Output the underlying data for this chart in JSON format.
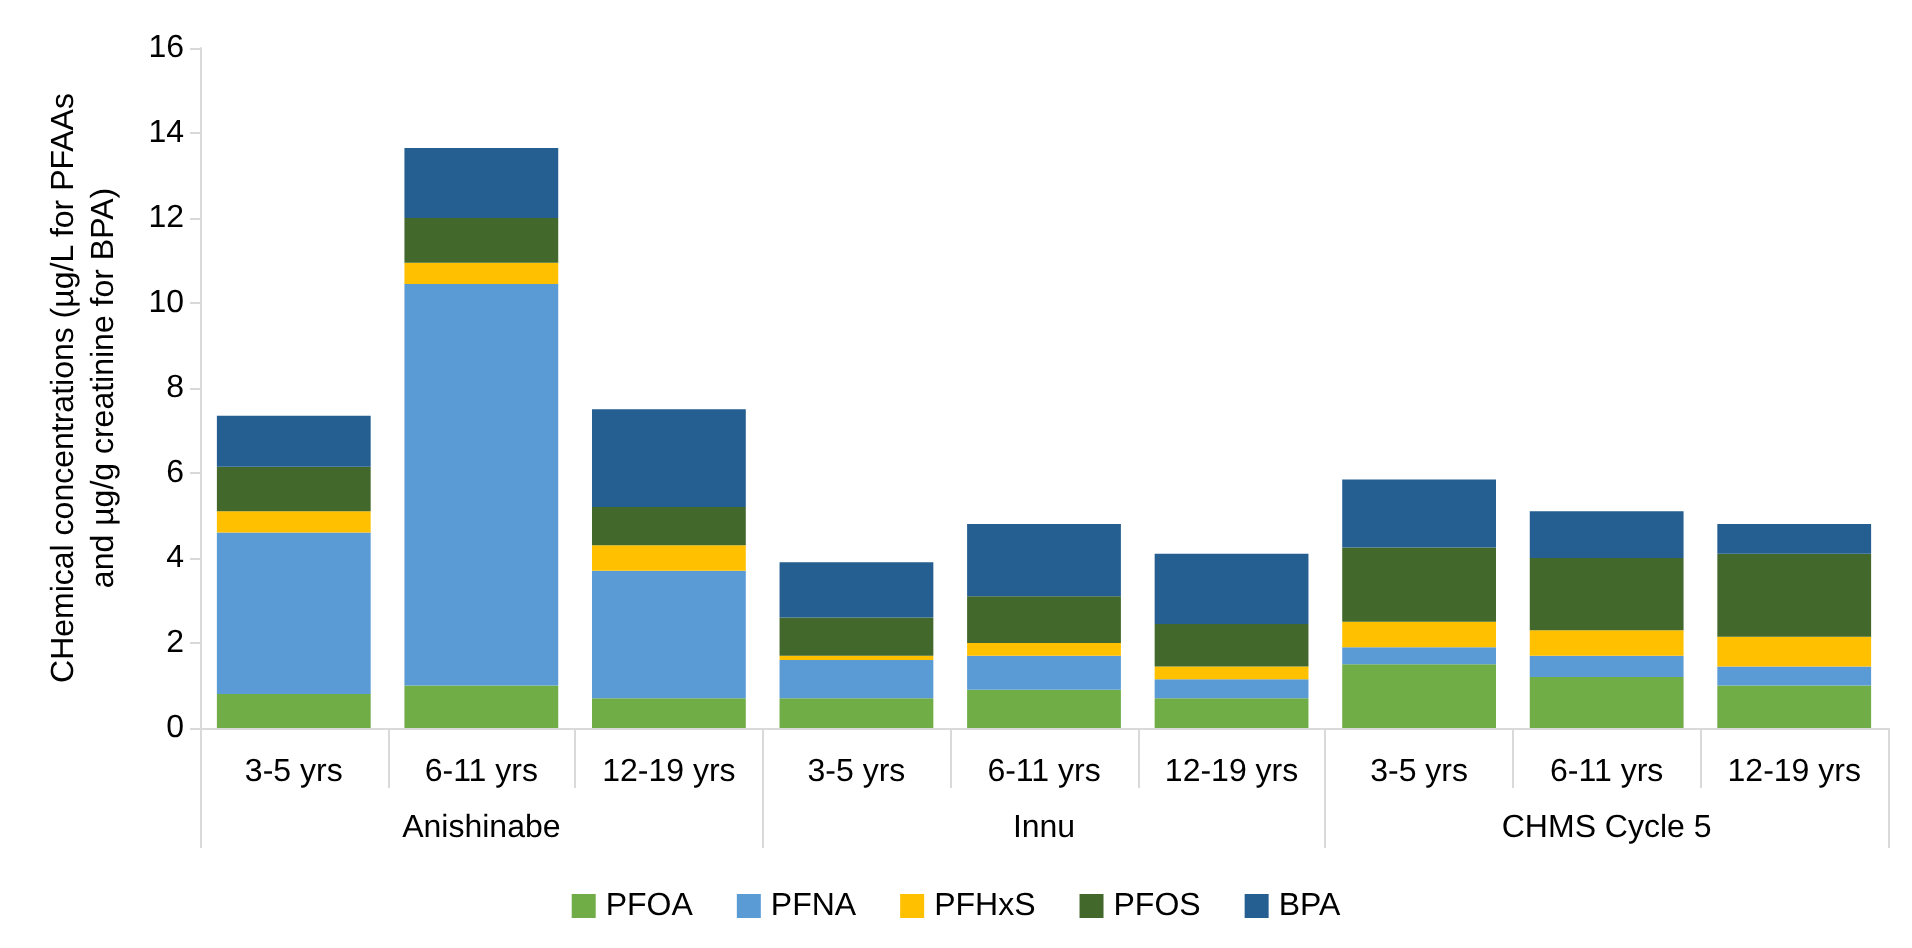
{
  "chart_data": {
    "type": "bar",
    "stacked": true,
    "ylabel": "CHemical concentrations (µg/L for PFAAs\nand µg/g creatinine for BPA)",
    "categories": [
      "3-5 yrs",
      "6-11 yrs",
      "12-19 yrs",
      "3-5 yrs",
      "6-11 yrs",
      "12-19 yrs",
      "3-5 yrs",
      "6-11 yrs",
      "12-19 yrs"
    ],
    "annotations": [
      "Anishinabe",
      "Innu",
      "CHMS Cycle 5"
    ],
    "series": [
      {
        "name": "PFOA",
        "color": "#70ad47",
        "values": [
          0.8,
          1.0,
          0.7,
          0.7,
          0.9,
          0.7,
          1.5,
          1.2,
          1.0
        ]
      },
      {
        "name": "PFNA",
        "color": "#5b9bd5",
        "values": [
          3.8,
          9.45,
          3.0,
          0.9,
          0.8,
          0.45,
          0.4,
          0.5,
          0.45
        ]
      },
      {
        "name": "PFHxS",
        "color": "#ffc000",
        "values": [
          0.5,
          0.5,
          0.6,
          0.1,
          0.3,
          0.3,
          0.6,
          0.6,
          0.7
        ]
      },
      {
        "name": "PFOS",
        "color": "#43682b",
        "values": [
          1.05,
          1.05,
          0.9,
          0.9,
          1.1,
          1.0,
          1.75,
          1.7,
          1.95
        ]
      },
      {
        "name": "BPA",
        "color": "#255e91",
        "values": [
          1.2,
          1.65,
          2.3,
          1.3,
          1.7,
          1.65,
          1.6,
          1.1,
          0.7
        ]
      }
    ],
    "ylim": [
      0,
      16
    ],
    "yticks": [
      0,
      2,
      4,
      6,
      8,
      10,
      12,
      14,
      16
    ],
    "grid": false,
    "legend": "bottom"
  }
}
